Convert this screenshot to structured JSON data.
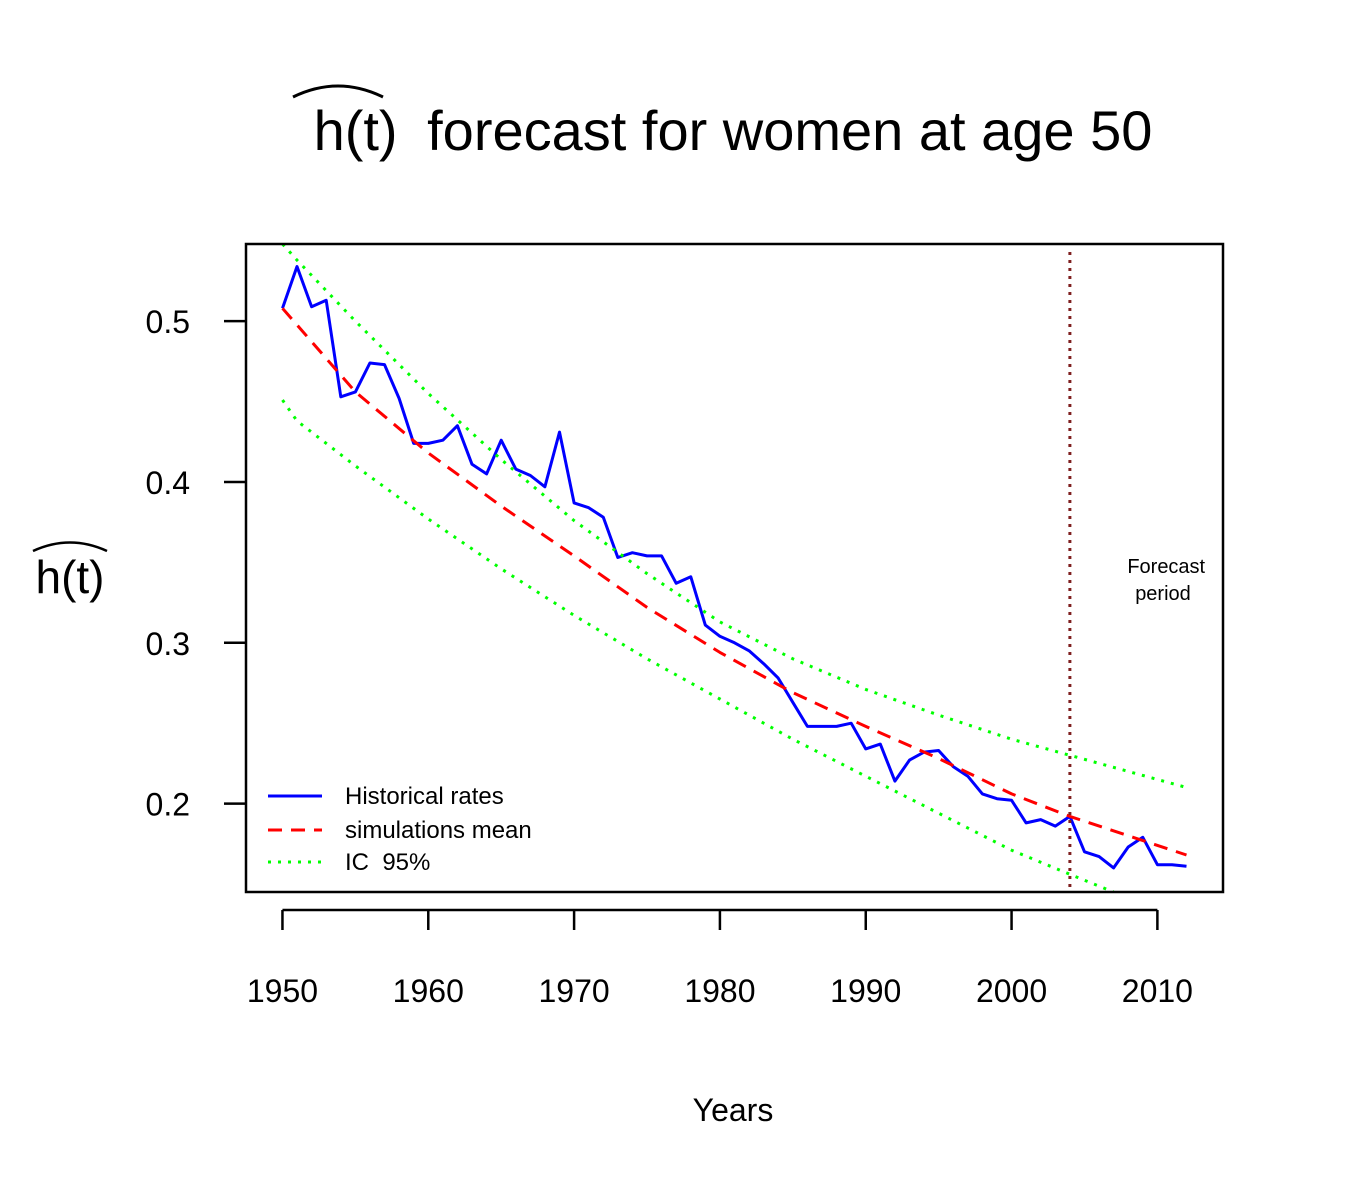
{
  "chart_data": {
    "type": "line",
    "title": "h(t) forecast for women at age 50",
    "title_hat_symbol": "h(t)",
    "title_rest": "forecast for women at age 50",
    "xlabel": "Years",
    "ylabel": "h(t)",
    "xlim": [
      1947.5,
      2014.5
    ],
    "ylim": [
      0.145,
      0.548
    ],
    "x_ticks": [
      1950,
      1960,
      1970,
      1980,
      1990,
      2000,
      2010
    ],
    "y_ticks": [
      0.2,
      0.3,
      0.4,
      0.5
    ],
    "y_tick_labels": [
      "0.2",
      "0.3",
      "0.4",
      "0.5"
    ],
    "grid": false,
    "legend_position": "bottom-left",
    "forecast_start": 2004,
    "annotation": [
      "Forecast",
      "period"
    ],
    "series": [
      {
        "name": "Historical rates",
        "color": "#0000ff",
        "style": "solid",
        "x": [
          1950,
          1951,
          1952,
          1953,
          1954,
          1955,
          1956,
          1957,
          1958,
          1959,
          1960,
          1961,
          1962,
          1963,
          1964,
          1965,
          1966,
          1967,
          1968,
          1969,
          1970,
          1971,
          1972,
          1973,
          1974,
          1975,
          1976,
          1977,
          1978,
          1979,
          1980,
          1981,
          1982,
          1983,
          1984,
          1985,
          1986,
          1987,
          1988,
          1989,
          1990,
          1991,
          1992,
          1993,
          1994,
          1995,
          1996,
          1997,
          1998,
          1999,
          2000,
          2001,
          2002,
          2003,
          2004,
          2005,
          2006,
          2007,
          2008,
          2009,
          2010,
          2011,
          2012
        ],
        "values": [
          0.508,
          0.534,
          0.509,
          0.513,
          0.453,
          0.456,
          0.474,
          0.473,
          0.452,
          0.424,
          0.424,
          0.426,
          0.435,
          0.411,
          0.405,
          0.426,
          0.408,
          0.404,
          0.397,
          0.431,
          0.387,
          0.384,
          0.378,
          0.353,
          0.356,
          0.354,
          0.354,
          0.337,
          0.341,
          0.311,
          0.304,
          0.3,
          0.295,
          0.287,
          0.278,
          0.263,
          0.248,
          0.248,
          0.248,
          0.25,
          0.234,
          0.237,
          0.214,
          0.227,
          0.232,
          0.233,
          0.223,
          0.217,
          0.206,
          0.203,
          0.202,
          0.188,
          0.19,
          0.186,
          0.192,
          0.17,
          0.167,
          0.16,
          0.173,
          0.179,
          0.162,
          0.162,
          0.161
        ]
      },
      {
        "name": "simulations mean",
        "color": "#ff0000",
        "style": "dashed",
        "x": [
          1950,
          1955,
          1960,
          1965,
          1970,
          1975,
          1980,
          1985,
          1990,
          1995,
          2000,
          2004,
          2008,
          2012
        ],
        "values": [
          0.508,
          0.456,
          0.418,
          0.385,
          0.354,
          0.322,
          0.294,
          0.269,
          0.248,
          0.228,
          0.206,
          0.192,
          0.18,
          0.168
        ]
      },
      {
        "name": "IC  95%",
        "color": "#00ff00",
        "style": "dotted",
        "x": [
          1950,
          1951,
          1955,
          1960,
          1965,
          1970,
          1975,
          1980,
          1985,
          1990,
          1995,
          2000,
          2004,
          2008,
          2012
        ],
        "values": [
          0.548,
          0.538,
          0.5,
          0.455,
          0.414,
          0.376,
          0.343,
          0.313,
          0.29,
          0.271,
          0.255,
          0.24,
          0.23,
          0.22,
          0.21
        ]
      },
      {
        "color": "#00ff00",
        "style": "dotted",
        "x": [
          1950,
          1951,
          1955,
          1960,
          1965,
          1970,
          1975,
          1980,
          1985,
          1990,
          1995,
          2000,
          2004,
          2007
        ],
        "values": [
          0.451,
          0.438,
          0.41,
          0.377,
          0.346,
          0.317,
          0.29,
          0.265,
          0.24,
          0.217,
          0.194,
          0.171,
          0.156,
          0.145
        ]
      }
    ]
  }
}
